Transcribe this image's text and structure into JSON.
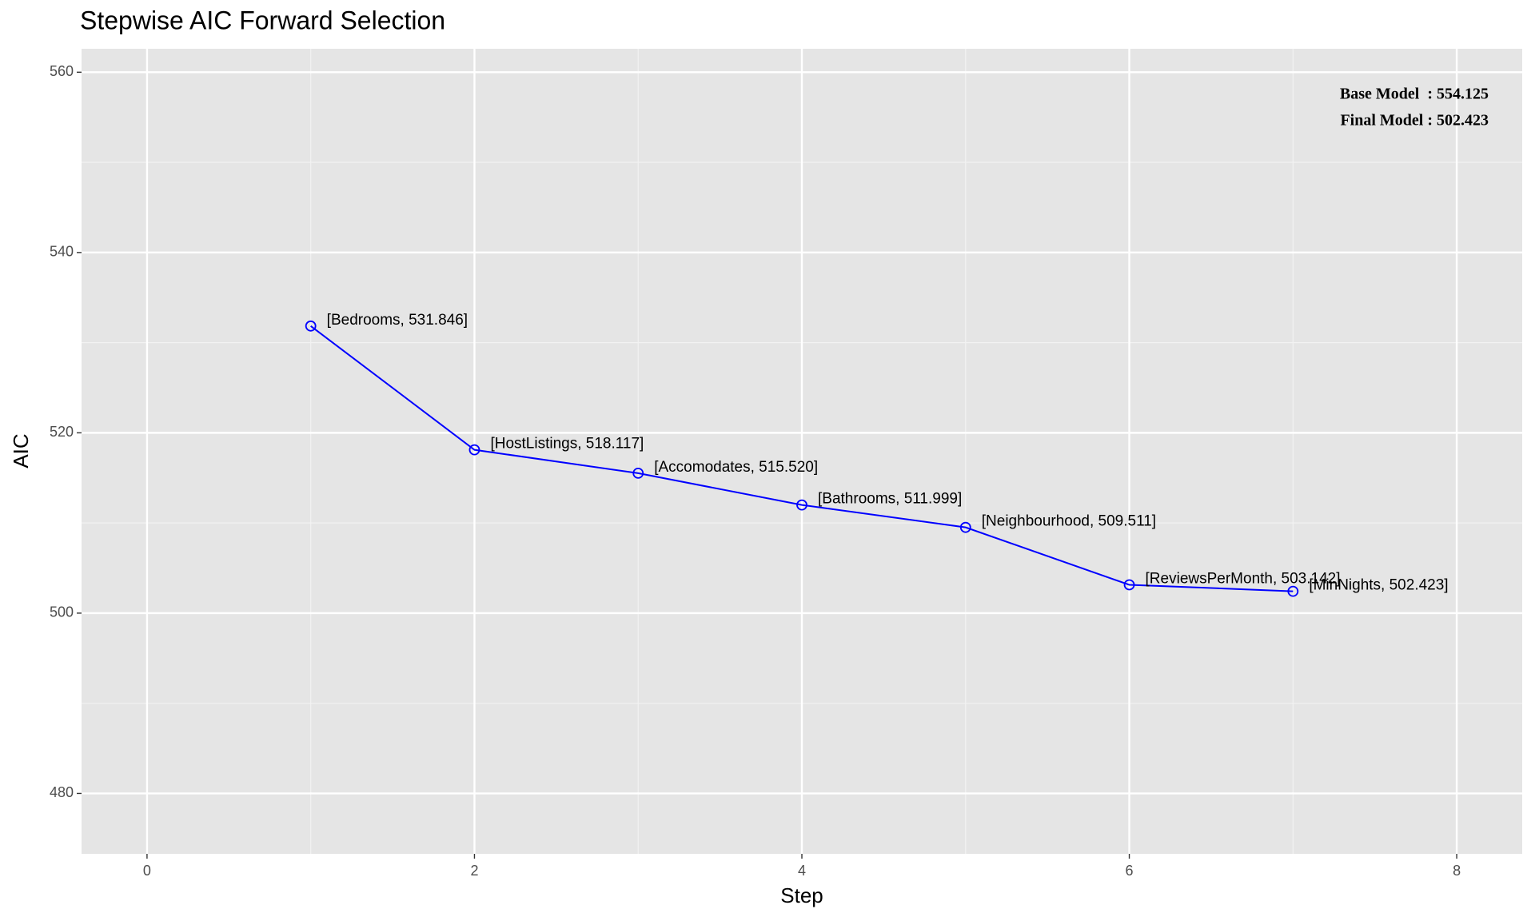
{
  "chart_data": {
    "type": "line",
    "title": "Stepwise AIC Forward Selection",
    "x_label": "Step",
    "y_label": "AIC",
    "x": [
      1,
      2,
      3,
      4,
      5,
      6,
      7
    ],
    "series": [
      {
        "color": "#0000ff",
        "values": [
          531.846,
          518.117,
          515.52,
          511.999,
          509.511,
          503.142,
          502.423
        ],
        "value_labels": [
          "[Bedrooms, 531.846]",
          "[HostListings, 518.117]",
          "[Accomodates, 515.520]",
          "[Bathrooms, 511.999]",
          "[Neighbourhood, 509.511]",
          "[ReviewsPerMonth, 503.142]",
          "[MinNights, 502.423]"
        ]
      }
    ],
    "xlim": [
      -0.4,
      8.4
    ],
    "ylim": [
      473.3,
      562.6
    ],
    "xticks": [
      0,
      2,
      4,
      6,
      8
    ],
    "yticks": [
      480,
      500,
      520,
      540,
      560
    ],
    "x_minor_ticks": [
      1,
      3,
      5,
      7
    ],
    "y_minor_ticks": [
      490,
      510,
      530,
      550
    ],
    "grid": true,
    "annotations": [
      "Base Model  : 554.125",
      "Final Model : 502.423"
    ],
    "annotation_corner": "top-right"
  }
}
